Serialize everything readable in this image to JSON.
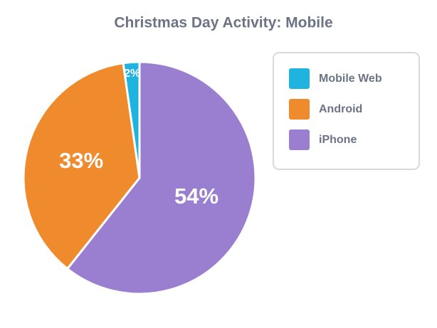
{
  "chart_data": {
    "type": "pie",
    "title": "Christmas Day Activity: Mobile",
    "categories": [
      "Mobile Web",
      "Android",
      "iPhone"
    ],
    "values": [
      2,
      33,
      54
    ],
    "value_labels": [
      "2%",
      "33%",
      "54%"
    ],
    "colors": [
      "#1fb3df",
      "#ef8a2d",
      "#9a7fd1"
    ],
    "legend": "right"
  }
}
